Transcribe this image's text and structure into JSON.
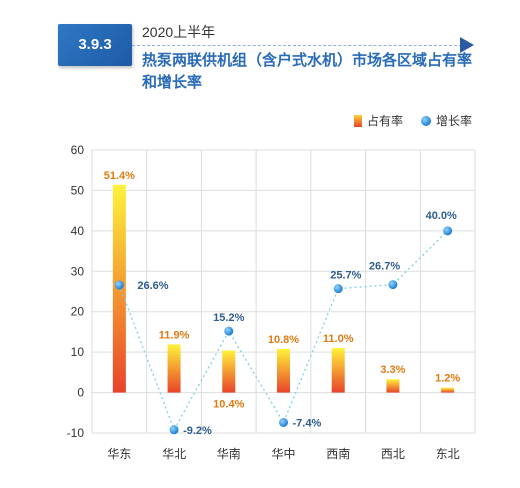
{
  "header": {
    "section_number": "3.9.3",
    "subtitle": "2020上半年",
    "title": "热泵两联供机组（含户式水机）市场各区域占有率和增长率"
  },
  "chart_data": {
    "type": "bar",
    "title": "热泵两联供机组（含户式水机）市场各区域占有率和增长率",
    "subtitle": "2020上半年",
    "categories": [
      "华东",
      "华北",
      "华南",
      "华中",
      "西南",
      "西北",
      "东北"
    ],
    "series": [
      {
        "name": "占有率",
        "type": "bar",
        "values": [
          51.4,
          11.9,
          10.4,
          10.8,
          11.0,
          3.3,
          1.2
        ],
        "labels": [
          "51.4%",
          "11.9%",
          "10.4%",
          "10.8%",
          "11.0%",
          "3.3%",
          "1.2%"
        ]
      },
      {
        "name": "增长率",
        "type": "line",
        "values": [
          26.6,
          -9.2,
          15.2,
          -7.4,
          25.7,
          26.7,
          40.0
        ],
        "labels": [
          "26.6%",
          "-9.2%",
          "15.2%",
          "-7.4%",
          "25.7%",
          "26.7%",
          "40.0%"
        ]
      }
    ],
    "ylim": [
      -10,
      60
    ],
    "yticks": [
      -10,
      0,
      10,
      20,
      30,
      40,
      50,
      60
    ],
    "grid": true,
    "legend_position": "top-right",
    "colors": {
      "bar_top": "#fff23a",
      "bar_bottom": "#e8432a",
      "bar_label": "#e07b12",
      "dot": "#2290dd",
      "line": "#7ad1e6",
      "line_label": "#2f5d8e",
      "grid": "#dddddd",
      "axis_text": "#333333"
    }
  }
}
